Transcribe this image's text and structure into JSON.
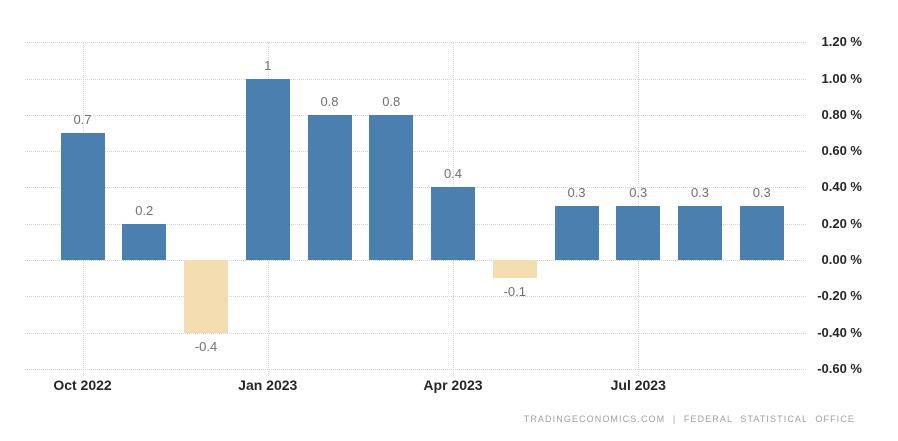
{
  "chart_data": {
    "type": "bar",
    "title": "",
    "categories_note": "monthly bars starting Oct 2022",
    "values": [
      0.7,
      0.2,
      -0.4,
      1,
      0.8,
      0.8,
      0.4,
      -0.1,
      0.3,
      0.3,
      0.3,
      0.3
    ],
    "value_labels": [
      "0.7",
      "0.2",
      "-0.4",
      "1",
      "0.8",
      "0.8",
      "0.4",
      "-0.1",
      "0.3",
      "0.3",
      "0.3",
      "0.3"
    ],
    "xticks": [
      {
        "index": 0,
        "label": "Oct 2022"
      },
      {
        "index": 3,
        "label": "Jan 2023"
      },
      {
        "index": 6,
        "label": "Apr 2023"
      },
      {
        "index": 9,
        "label": "Jul 2023"
      }
    ],
    "yticks": [
      {
        "value": 1.2,
        "label": "1.20 %"
      },
      {
        "value": 1.0,
        "label": "1.00 %"
      },
      {
        "value": 0.8,
        "label": "0.80 %"
      },
      {
        "value": 0.6,
        "label": "0.60 %"
      },
      {
        "value": 0.4,
        "label": "0.40 %"
      },
      {
        "value": 0.2,
        "label": "0.20 %"
      },
      {
        "value": 0.0,
        "label": "0.00 %"
      },
      {
        "value": -0.2,
        "label": "-0.20 %"
      },
      {
        "value": -0.4,
        "label": "-0.40 %"
      },
      {
        "value": -0.6,
        "label": "-0.60 %"
      }
    ],
    "ylim": [
      -0.6,
      1.2
    ],
    "grid": "dotted",
    "legend": "none",
    "yaxis_side": "right",
    "colors": {
      "positive_bar": "#4a7fb0",
      "negative_bar": "#f3dcb0",
      "grid": "#d2d2d2",
      "axis_tick_label": "#262626",
      "value_label": "#6f6f6f",
      "footer_text": "#9e9e9e"
    }
  },
  "footer": {
    "attribution": "TRADINGECONOMICS.COM | FEDERAL STATISTICAL OFFICE"
  }
}
